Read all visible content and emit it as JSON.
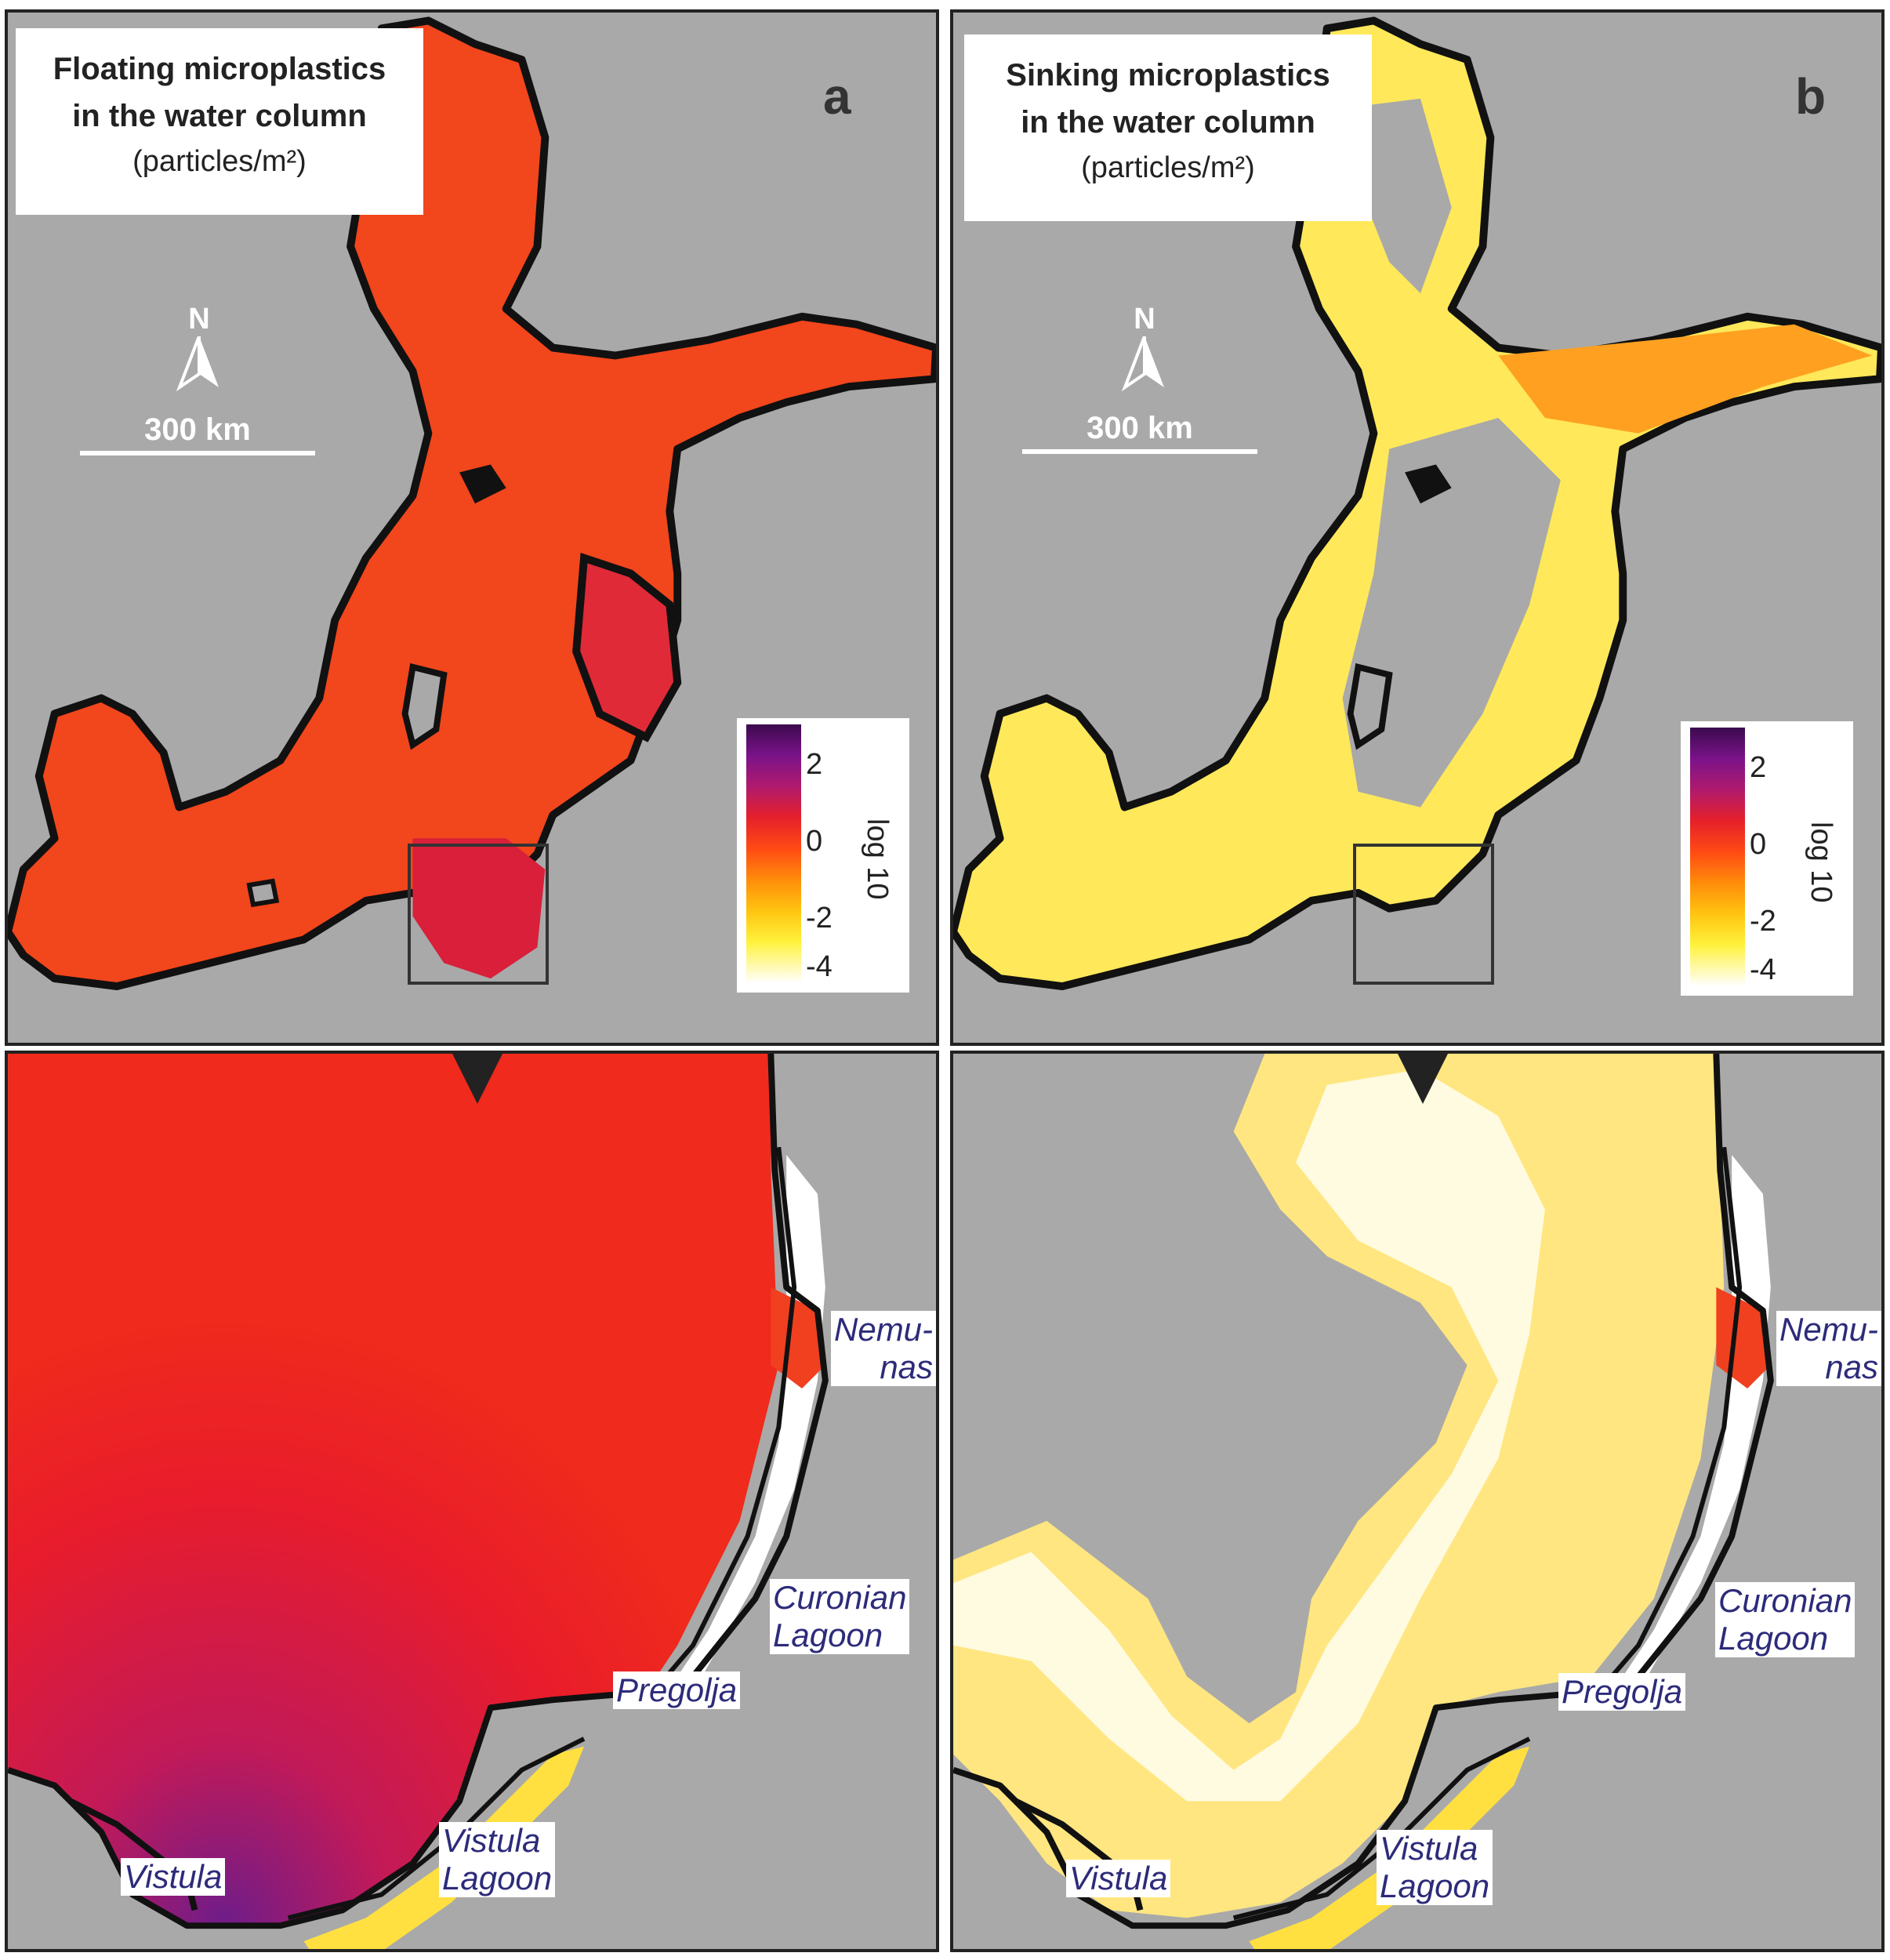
{
  "panels": {
    "a": {
      "title_line1": "Floating microplastics",
      "title_line2": "in the water column",
      "units": "(particles/m²)",
      "letter": "a",
      "fill_color": "#ff3a12"
    },
    "b": {
      "title_line1": "Sinking microplastics",
      "title_line2": "in the water column",
      "units": "(particles/m²)",
      "letter": "b",
      "fill_color": "#ffe04a"
    }
  },
  "north_arrow": {
    "label": "N",
    "icon": "north-arrow-icon"
  },
  "scale_bar": {
    "label": "300 km"
  },
  "legend": {
    "unit": "log 10",
    "ticks": [
      "2",
      "0",
      "-2",
      "-4"
    ],
    "colors": [
      "#3b0a4d",
      "#b01a6d",
      "#e5202b",
      "#ff8c0a",
      "#fff23c",
      "#ffffff"
    ]
  },
  "place_labels": {
    "nemunas_line1": "Nemu-",
    "nemunas_line2": "nas",
    "curonian_line1": "Curonian",
    "curonian_line2": "Lagoon",
    "pregolja": "Pregolja",
    "vistula": "Vistula",
    "vistula_lagoon_line1": "Vistula",
    "vistula_lagoon_line2": "Lagoon"
  },
  "colors": {
    "land": "#a9a9a9",
    "coastline": "#111111",
    "label_text": "#2d2b7a"
  }
}
